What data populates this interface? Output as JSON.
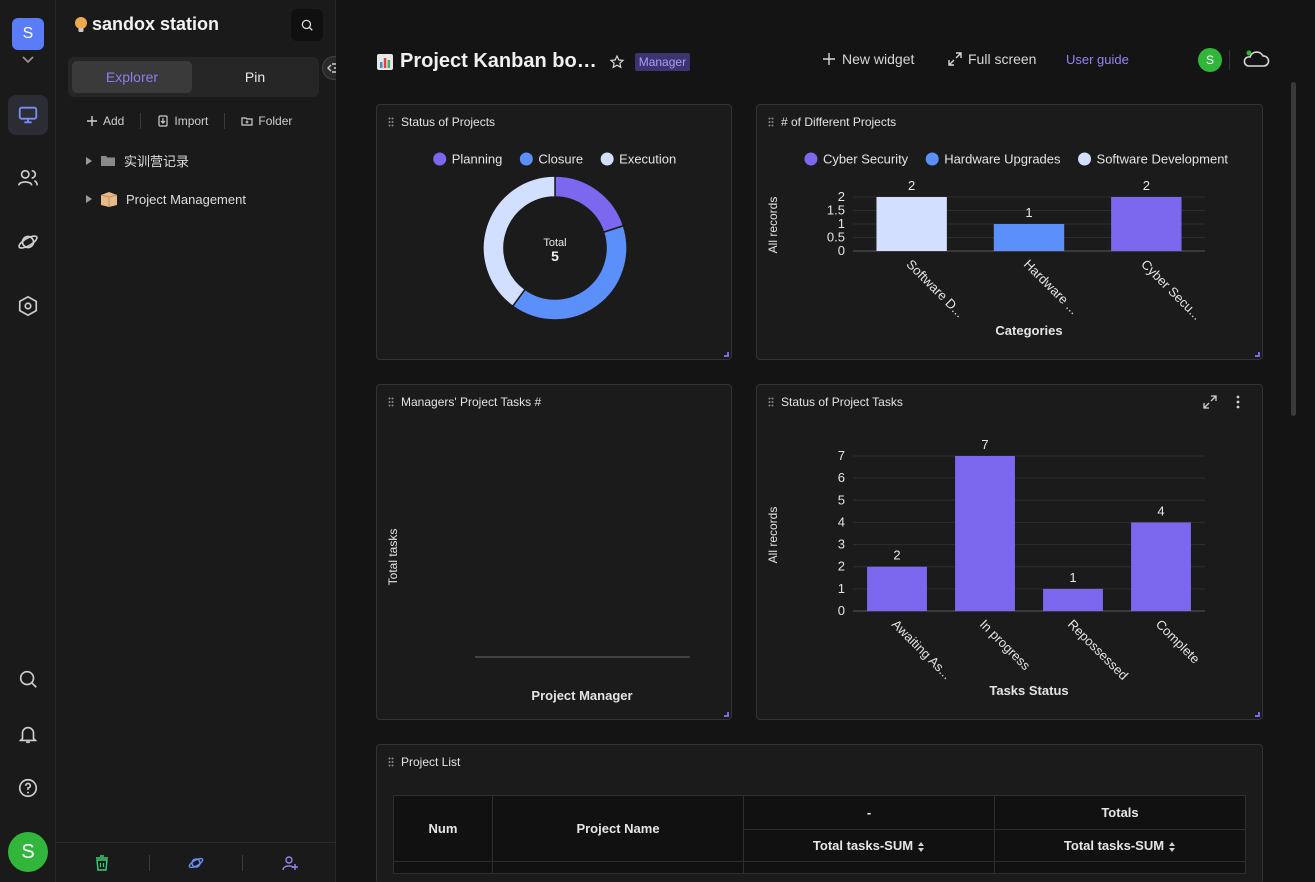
{
  "rail": {
    "space_initial": "S",
    "user_initial": "S"
  },
  "panel": {
    "space_name": "sandox station",
    "tabs": [
      "Explorer",
      "Pin"
    ],
    "actions": [
      "Add",
      "Import",
      "Folder"
    ],
    "tree": [
      {
        "label": "实训营记录",
        "icon": "folder-icon"
      },
      {
        "label": "Project Management",
        "icon": "package-icon"
      }
    ]
  },
  "header": {
    "title": "Project Kanban bo…",
    "role_badge": "Manager",
    "new_widget": "New widget",
    "full_screen": "Full screen",
    "user_guide": "User guide",
    "avatar_initial": "S"
  },
  "widgets": {
    "status_projects": {
      "title": "Status of Projects"
    },
    "diff_projects": {
      "title": "# of Different Projects"
    },
    "manager_tasks": {
      "title": "Managers' Project Tasks #"
    },
    "task_status": {
      "title": "Status of Project Tasks"
    },
    "project_list": {
      "title": "Project List"
    }
  },
  "chart_data": [
    {
      "id": "status_projects",
      "type": "pie",
      "legend": [
        "Planning",
        "Closure",
        "Execution"
      ],
      "colors": [
        "#7b68ee",
        "#5b8ff9",
        "#d3dffe"
      ],
      "values": [
        1,
        2,
        2
      ],
      "center_label": "Total",
      "center_value": "5",
      "legend_position": "top"
    },
    {
      "id": "diff_projects",
      "type": "bar",
      "legend": [
        "Cyber Security",
        "Hardware Upgrades",
        "Software Development"
      ],
      "legend_colors": [
        "#7b68ee",
        "#5b8ff9",
        "#d3dffe"
      ],
      "categories": [
        "Software D...",
        "Hardware ...",
        "Cyber Secu..."
      ],
      "values": [
        2,
        1,
        2
      ],
      "bar_colors": [
        "#d3dffe",
        "#5b8ff9",
        "#7b68ee"
      ],
      "ylabel": "All records",
      "xlabel": "Categories",
      "yticks": [
        "2",
        "1.5",
        "1",
        "0.5",
        "0"
      ],
      "ylim": [
        0,
        2
      ],
      "legend_position": "top"
    },
    {
      "id": "manager_tasks",
      "type": "bar",
      "categories": [],
      "values": [],
      "ylabel": "Total tasks",
      "xlabel": "Project Manager"
    },
    {
      "id": "task_status",
      "type": "bar",
      "categories": [
        "Awaiting As...",
        "In progress",
        "Repossessed",
        "Complete"
      ],
      "values": [
        2,
        7,
        1,
        4
      ],
      "bar_color": "#7b68ee",
      "ylabel": "All records",
      "xlabel": "Tasks Status",
      "yticks": [
        "7",
        "6",
        "5",
        "4",
        "3",
        "2",
        "1",
        "0"
      ],
      "ylim": [
        0,
        7
      ]
    }
  ],
  "table": {
    "col_num": "Num",
    "col_name": "Project Name",
    "group_1": "-",
    "group_2": "Totals",
    "sub_1": "Total tasks-SUM",
    "sub_2": "Total tasks-SUM"
  }
}
